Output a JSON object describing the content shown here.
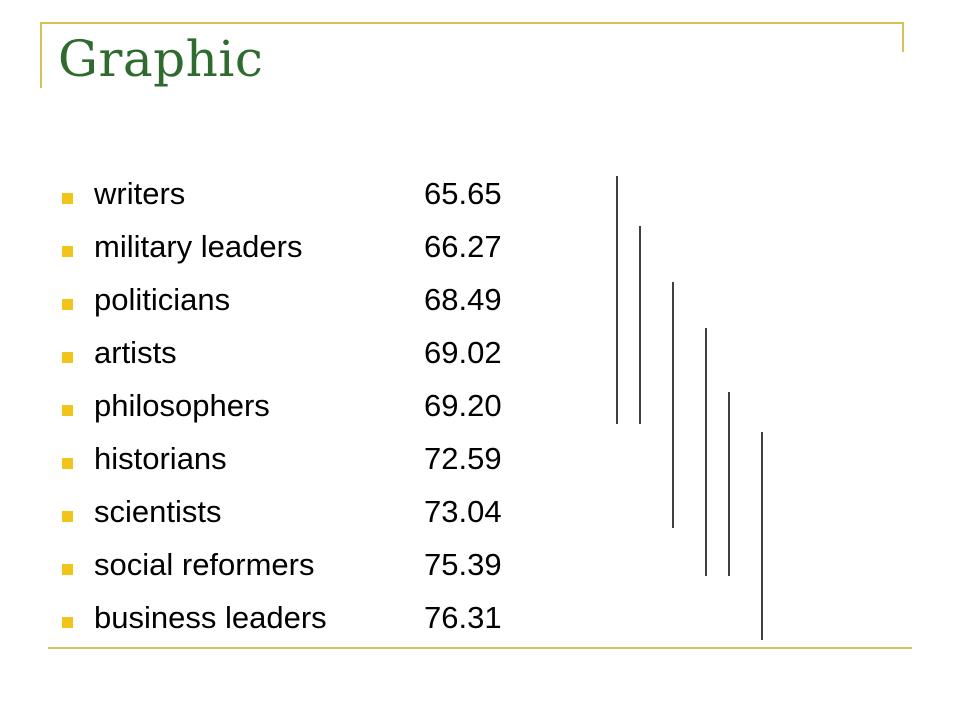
{
  "slide": {
    "title": "Graphic",
    "accent_color": "#d8c05a",
    "title_color": "#2f6b2f",
    "bullet_color": "#f0c419"
  },
  "chart_data": {
    "type": "table",
    "categories": [
      "writers",
      "military leaders",
      "politicians",
      "artists",
      "philosophers",
      "historians",
      "scientists",
      "social reformers",
      "business leaders"
    ],
    "values": [
      "65.65",
      "66.27",
      "68.49",
      "69.02",
      "69.20",
      "72.59",
      "73.04",
      "75.39",
      "76.31"
    ]
  }
}
